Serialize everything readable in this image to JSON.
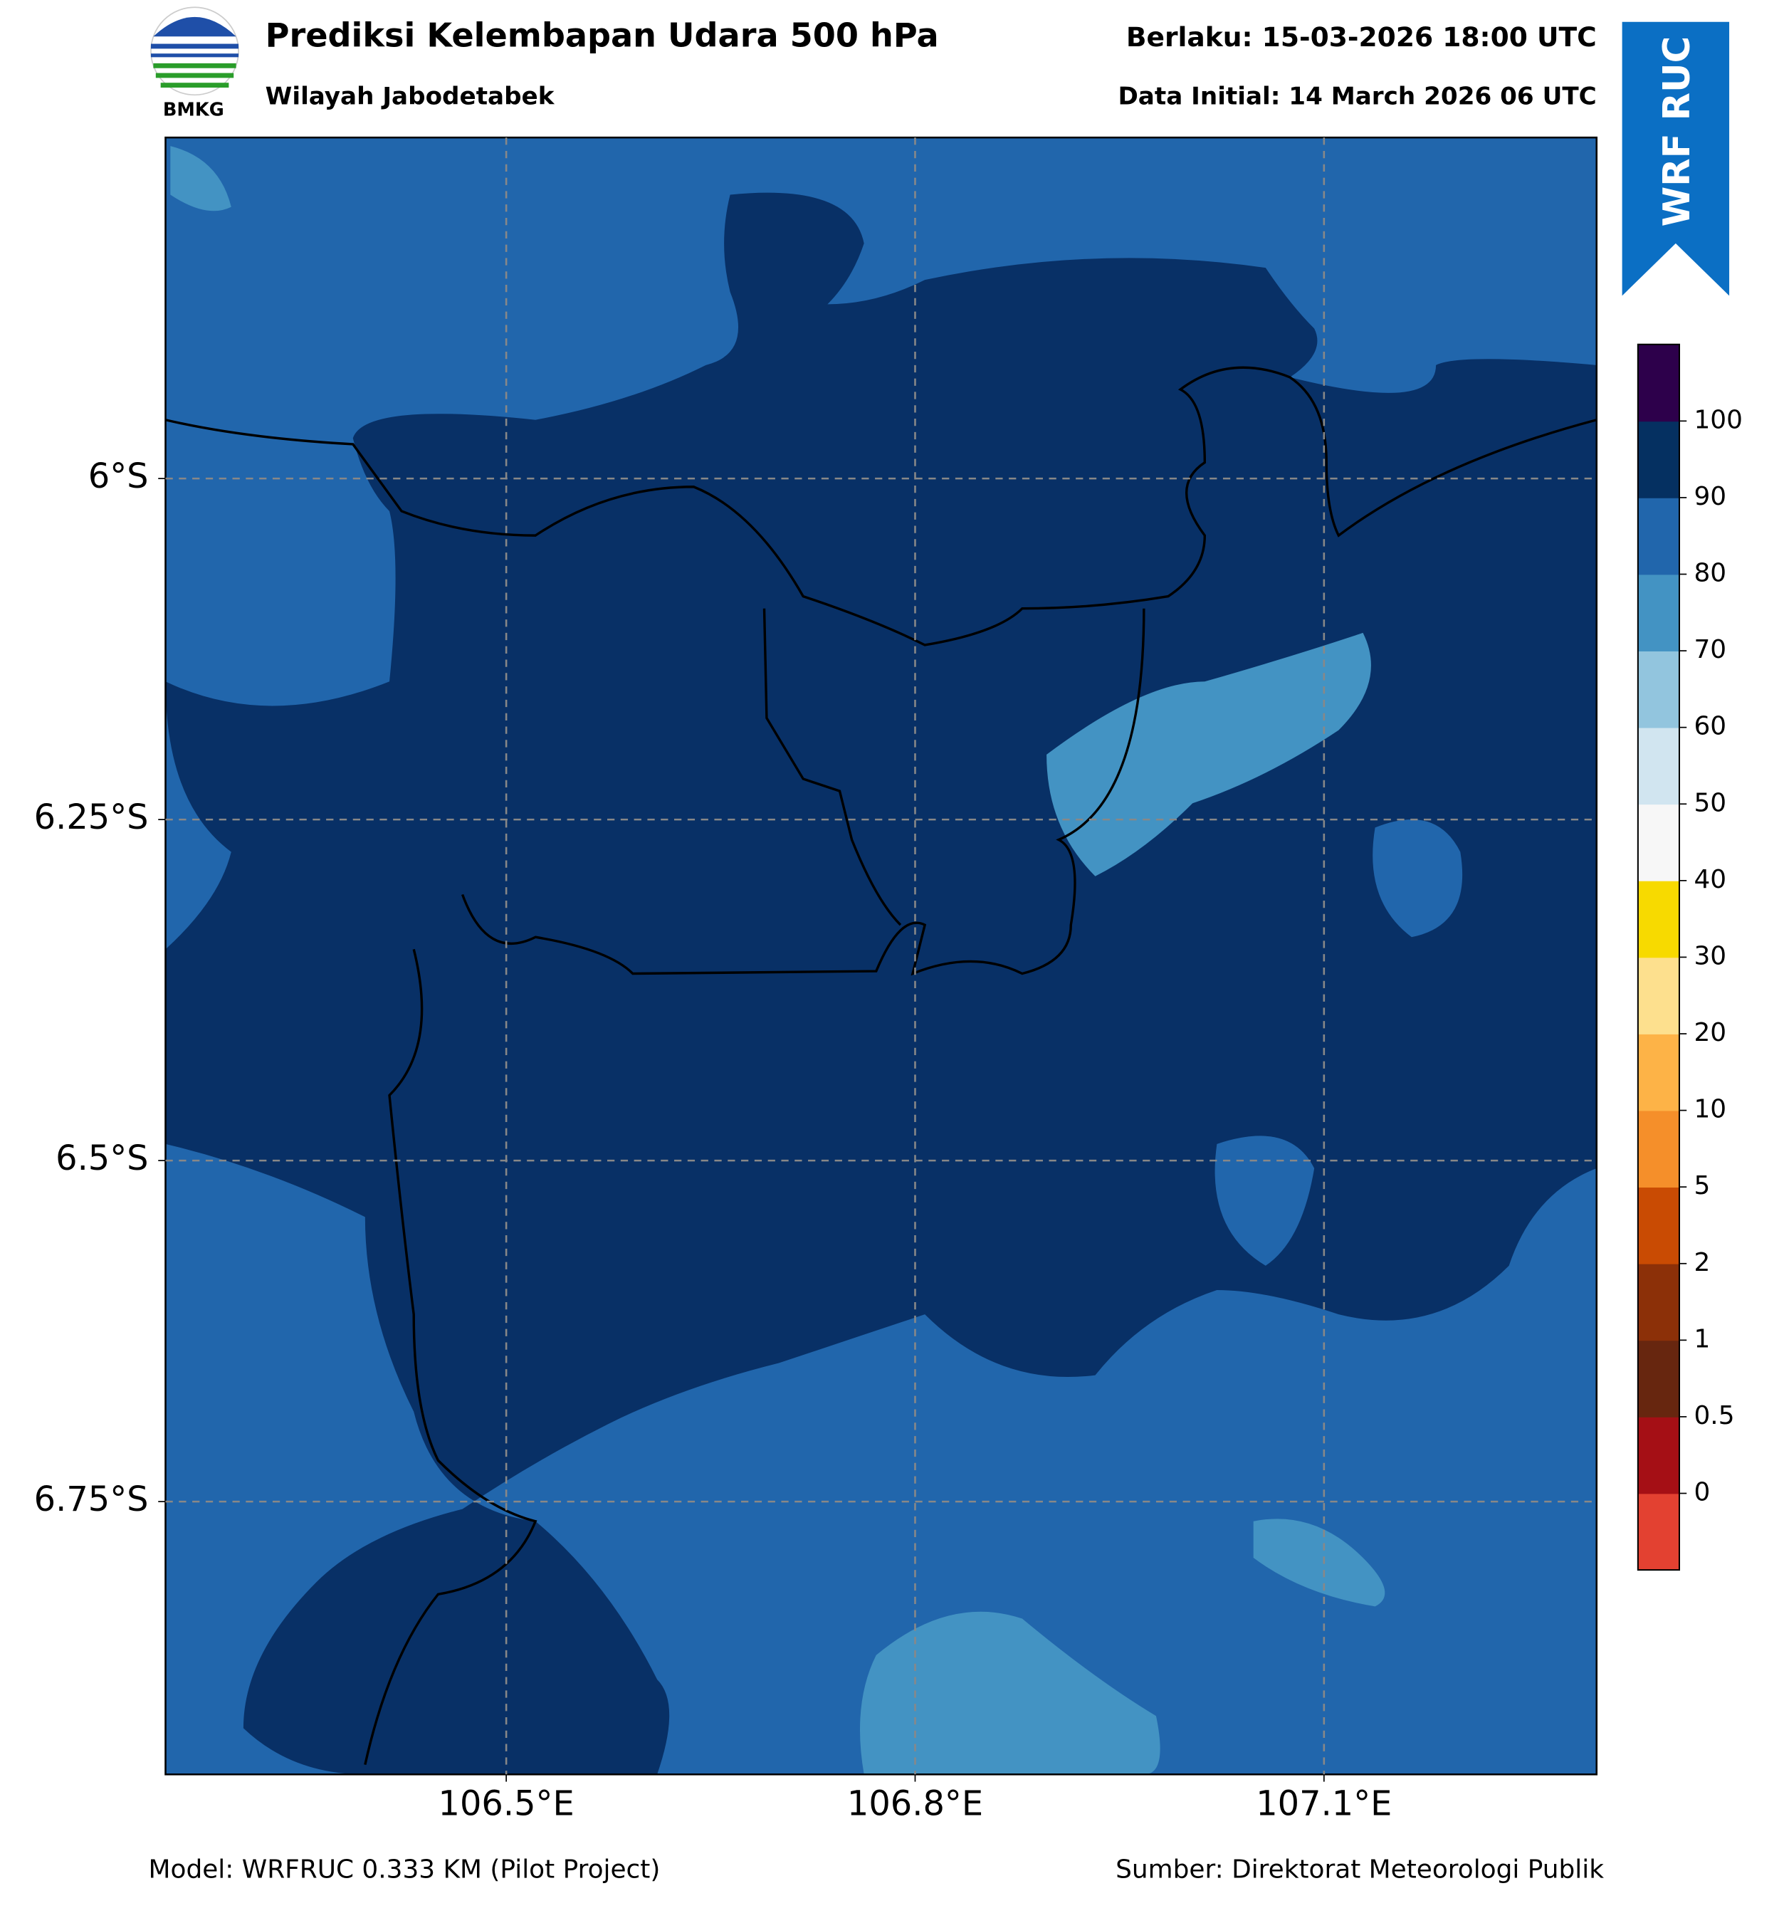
{
  "header": {
    "logo_text": "BMKG",
    "title": "Prediksi Kelembapan Udara 500 hPa",
    "subtitle": "Wilayah Jabodetabek",
    "valid": "Berlaku: 15-03-2026 18:00 UTC",
    "initial": "Data Initial: 14 March 2026 06 UTC",
    "badge": "WRF RUC"
  },
  "map": {
    "xlim": [
      106.25,
      107.3
    ],
    "ylim": [
      -6.95,
      -5.75
    ],
    "xticks": [
      {
        "value": 106.5,
        "label": "106.5°E"
      },
      {
        "value": 106.8,
        "label": "106.8°E"
      },
      {
        "value": 107.1,
        "label": "107.1°E"
      }
    ],
    "yticks": [
      {
        "value": -6,
        "label": "6°S"
      },
      {
        "value": -6.25,
        "label": "6.25°S"
      },
      {
        "value": -6.5,
        "label": "6.5°S"
      },
      {
        "value": -6.75,
        "label": "6.75°S"
      }
    ],
    "grid": true
  },
  "colorbar": {
    "levels": [
      0,
      0.5,
      1,
      2,
      5,
      10,
      20,
      30,
      40,
      50,
      60,
      70,
      80,
      90,
      100
    ],
    "colors": [
      "#e34131",
      "#a50f15",
      "#67260f",
      "#8c3008",
      "#c94b03",
      "#f58f2a",
      "#fdb347",
      "#fde08e",
      "#f7da00",
      "#f7f7f7",
      "#d1e5f0",
      "#92c5de",
      "#4393c3",
      "#2166ac",
      "#053061",
      "#2d004b"
    ]
  },
  "footer": {
    "model": "Model: WRFRUC 0.333 KM (Pilot Project)",
    "source": "Sumber: Direktorat Meteorologi Publik"
  }
}
